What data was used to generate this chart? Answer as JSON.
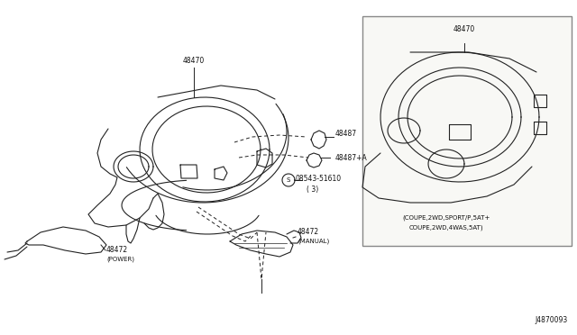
{
  "bg_color": "#ffffff",
  "line_color": "#222222",
  "text_color": "#111111",
  "fig_width": 6.4,
  "fig_height": 3.72,
  "diagram_id": "J4870093",
  "label_48470": "48470",
  "label_48487": "48487",
  "label_48487a": "48487+A",
  "label_screw": "08543-51610",
  "label_screw_qty": "( 3)",
  "label_48472_manual": "48472",
  "label_48472_manual_sub": "(MANUAL)",
  "label_48472_power": "48472",
  "label_48472_power_sub": "(POWER)",
  "inset_label": "48470",
  "inset_cap1": "(COUPE,2WD,SPORT/P,5AT+",
  "inset_cap2": "COUPE,2WD,4WAS,5AT)",
  "font_size": 5.5,
  "font_size_small": 5.0
}
